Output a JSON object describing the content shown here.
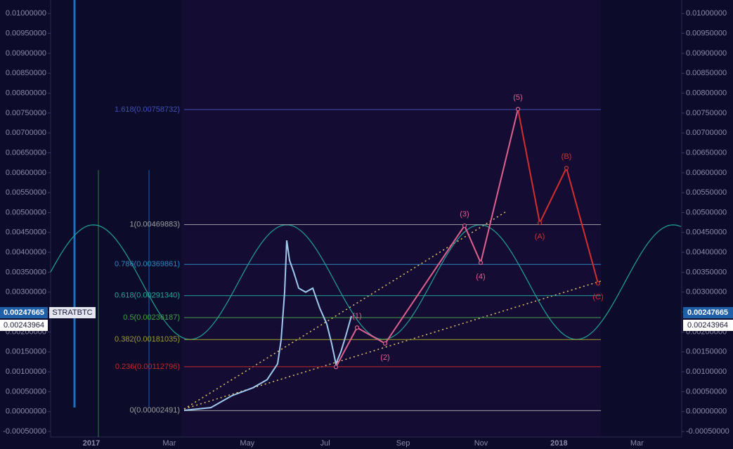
{
  "chart_data": {
    "type": "fib-elliott",
    "symbol": "STRATBTC",
    "ylim": [
      -0.00064,
      0.01034
    ],
    "yticks": [
      {
        "value": 0.01,
        "label": "0.01000000"
      },
      {
        "value": 0.0095,
        "label": "0.00950000"
      },
      {
        "value": 0.009,
        "label": "0.00900000"
      },
      {
        "value": 0.0085,
        "label": "0.00850000"
      },
      {
        "value": 0.008,
        "label": "0.00800000"
      },
      {
        "value": 0.0075,
        "label": "0.00750000"
      },
      {
        "value": 0.007,
        "label": "0.00700000"
      },
      {
        "value": 0.0065,
        "label": "0.00650000"
      },
      {
        "value": 0.006,
        "label": "0.00600000"
      },
      {
        "value": 0.0055,
        "label": "0.00550000"
      },
      {
        "value": 0.005,
        "label": "0.00500000"
      },
      {
        "value": 0.0045,
        "label": "0.00450000"
      },
      {
        "value": 0.004,
        "label": "0.00400000"
      },
      {
        "value": 0.0035,
        "label": "0.00350000"
      },
      {
        "value": 0.003,
        "label": "0.00300000"
      },
      {
        "value": 0.0025,
        "label": "0.00250000"
      },
      {
        "value": 0.002,
        "label": "0.00200000"
      },
      {
        "value": 0.0015,
        "label": "0.00150000"
      },
      {
        "value": 0.001,
        "label": "0.00100000"
      },
      {
        "value": 0.0005,
        "label": "0.00050000"
      },
      {
        "value": 0,
        "label": "0.00000000"
      },
      {
        "value": -0.0005,
        "label": "-0.00050000"
      }
    ],
    "xticks": [
      "2017",
      "Mar",
      "May",
      "Jul",
      "Sep",
      "Nov",
      "2018",
      "Mar"
    ],
    "fib_levels": [
      {
        "value": 0.00758732,
        "label": "1.618(0.00758732)",
        "color": "#3f51b5"
      },
      {
        "value": 0.00469883,
        "label": "1(0.00469883)",
        "color": "#9e9e9e"
      },
      {
        "value": 0.00369861,
        "label": "0.786(0.00369861)",
        "color": "#2e86c1"
      },
      {
        "value": 0.0029134,
        "label": "0.618(0.00291340)",
        "color": "#26a69a"
      },
      {
        "value": 0.00236187,
        "label": "0.5(0.00236187)",
        "color": "#43a047"
      },
      {
        "value": 0.00181035,
        "label": "0.382(0.00181035)",
        "color": "#9e9d24"
      },
      {
        "value": 0.00112796,
        "label": "0.236(0.00112796)",
        "color": "#c62828"
      },
      {
        "value": 2.491e-05,
        "label": "0(0.00002491)",
        "color": "#9e9e9e"
      }
    ],
    "price_labels": [
      {
        "value": 0.00247665,
        "label": "0.00247665",
        "color": "#1e5fa8"
      },
      {
        "value": 0.00243964,
        "label": "0.00243964",
        "color": "#ffffff"
      }
    ],
    "price": {
      "color": "#9fc9ee",
      "values": [
        3e-05,
        0.0001,
        0.0004,
        0.0006,
        0.0008,
        0.0012,
        0.0018,
        0.003,
        0.0043,
        0.0038,
        0.0035,
        0.0031,
        0.003,
        0.0031,
        0.0026,
        0.0022,
        0.0017,
        0.0012,
        0.0015,
        0.0019,
        0.0024
      ]
    },
    "waves": {
      "values": [
        0.00112,
        0.00211,
        0.00171,
        0.00467,
        0.00374,
        0.0076,
        0.00474,
        0.00612,
        0.00322
      ],
      "labels": [
        null,
        "(1)",
        "(2)",
        "(3)",
        "(4)",
        "(5)",
        "(A)",
        "(B)",
        "(C)"
      ],
      "impulse_color": "#e0608e",
      "corrective_color": "#d32f2f"
    }
  }
}
